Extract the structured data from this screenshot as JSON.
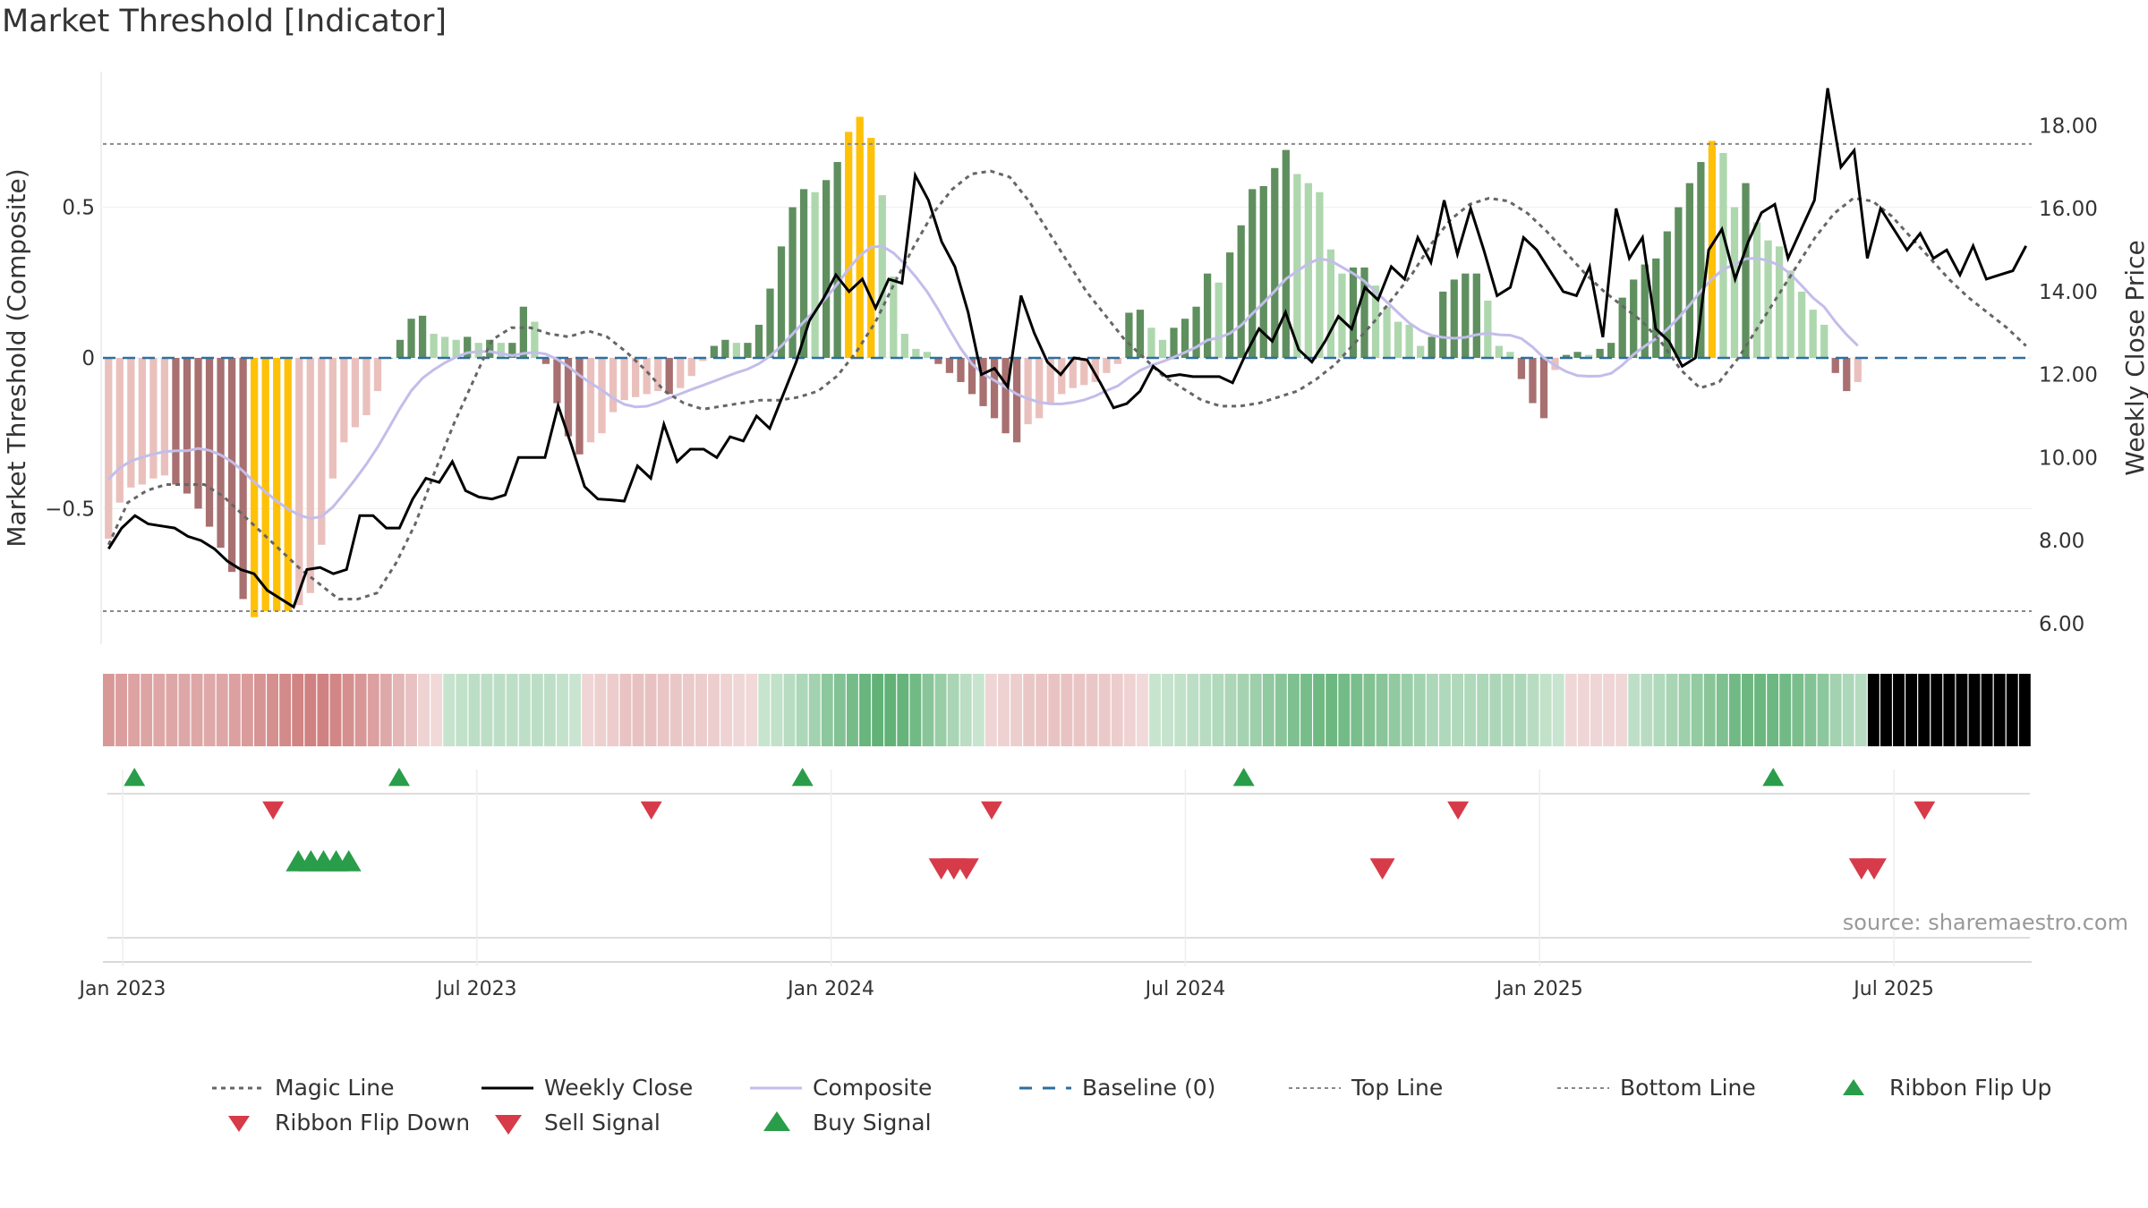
{
  "title": "Market Threshold [Indicator]",
  "source_note": "source: sharemaestro.com",
  "colors": {
    "magic_line": "#666666",
    "weekly_close": "#000000",
    "composite": "#c3bdea",
    "baseline": "#2f6f9f",
    "threshold": "#888888",
    "extreme": "#ffc107",
    "pos_strong": "#5f8f5f",
    "pos_weak": "#aed7ae",
    "neg_strong": "#a87070",
    "neg_weak": "#eac0bd",
    "buy": "#2a9d4a",
    "sell": "#d73a49"
  },
  "chart_data": {
    "type": "bar",
    "title": "Market Threshold [Indicator]",
    "ylabel_left": "Market Threshold (Composite)",
    "ylabel_right": "Weekly Close Price",
    "ylim_left": [
      -0.95,
      0.95
    ],
    "ylim_right": [
      5.5,
      19.3
    ],
    "left_ticks": [
      -0.5,
      0,
      0.5
    ],
    "left_tick_labels": [
      "−0.5",
      "0",
      "0.5"
    ],
    "right_ticks": [
      6,
      8,
      10,
      12,
      14,
      16,
      18
    ],
    "right_tick_labels": [
      "6.00",
      "8.00",
      "10.00",
      "12.00",
      "14.00",
      "16.00",
      "18.00"
    ],
    "x_ticks": [
      2,
      38,
      74,
      110,
      146,
      182
    ],
    "x_tick_labels": [
      "Jan 2023",
      "Jul 2023",
      "Jan 2024",
      "Jul 2024",
      "Jan 2025",
      "Jul 2025"
    ],
    "top_line": 0.71,
    "bottom_line": -0.84,
    "baseline": 0,
    "composite": [
      -0.6,
      -0.48,
      -0.43,
      -0.42,
      -0.4,
      -0.39,
      -0.42,
      -0.45,
      -0.5,
      -0.56,
      -0.63,
      -0.71,
      -0.8,
      -0.86,
      -0.84,
      -0.84,
      -0.84,
      -0.82,
      -0.78,
      -0.62,
      -0.4,
      -0.28,
      -0.23,
      -0.19,
      -0.11,
      0,
      0.06,
      0.13,
      0.14,
      0.08,
      0.07,
      0.06,
      0.07,
      0.05,
      0.06,
      0.05,
      0.05,
      0.17,
      0.12,
      -0.02,
      -0.15,
      -0.26,
      -0.32,
      -0.28,
      -0.25,
      -0.18,
      -0.14,
      -0.13,
      -0.12,
      -0.11,
      -0.12,
      -0.1,
      -0.06,
      -0.01,
      0.04,
      0.06,
      0.05,
      0.05,
      0.11,
      0.23,
      0.37,
      0.5,
      0.56,
      0.55,
      0.59,
      0.65,
      0.75,
      0.8,
      0.73,
      0.54,
      0.27,
      0.08,
      0.03,
      0.02,
      -0.02,
      -0.05,
      -0.08,
      -0.12,
      -0.16,
      -0.2,
      -0.25,
      -0.28,
      -0.22,
      -0.2,
      -0.15,
      -0.12,
      -0.1,
      -0.09,
      -0.08,
      -0.05,
      -0.02,
      0.15,
      0.16,
      0.1,
      0.06,
      0.1,
      0.13,
      0.17,
      0.28,
      0.25,
      0.35,
      0.44,
      0.56,
      0.57,
      0.63,
      0.69,
      0.61,
      0.58,
      0.55,
      0.36,
      0.28,
      0.3,
      0.3,
      0.24,
      0.17,
      0.12,
      0.11,
      0.04,
      0.07,
      0.22,
      0.26,
      0.28,
      0.28,
      0.19,
      0.04,
      0.02,
      -0.07,
      -0.15,
      -0.2,
      -0.04,
      0.01,
      0.02,
      0.01,
      0.03,
      0.05,
      0.2,
      0.26,
      0.31,
      0.33,
      0.42,
      0.5,
      0.58,
      0.65,
      0.72,
      0.68,
      0.5,
      0.58,
      0.45,
      0.39,
      0.37,
      0.29,
      0.22,
      0.16,
      0.11,
      -0.05,
      -0.11,
      -0.08
    ],
    "weekly_close": [
      7.8,
      8.3,
      8.6,
      8.4,
      8.35,
      8.3,
      8.1,
      8.0,
      7.8,
      7.5,
      7.3,
      7.2,
      6.8,
      6.6,
      6.4,
      7.3,
      7.35,
      7.2,
      7.3,
      8.6,
      8.6,
      8.3,
      8.3,
      9.0,
      9.5,
      9.4,
      9.9,
      9.2,
      9.05,
      9.0,
      9.1,
      10.0,
      10.0,
      10.0,
      11.25,
      10.3,
      9.3,
      9.0,
      8.98,
      8.95,
      9.8,
      9.5,
      10.8,
      9.9,
      10.2,
      10.2,
      10.0,
      10.5,
      10.4,
      11.0,
      10.7,
      11.5,
      12.3,
      13.3,
      13.8,
      14.4,
      14.0,
      14.3,
      13.6,
      14.3,
      14.2,
      16.8,
      16.2,
      15.2,
      14.6,
      13.5,
      12.0,
      12.15,
      11.7,
      13.9,
      13.0,
      12.3,
      12.0,
      12.4,
      12.35,
      11.8,
      11.2,
      11.3,
      11.6,
      12.2,
      11.95,
      12.0,
      11.95,
      11.95,
      11.95,
      11.8,
      12.5,
      13.1,
      12.8,
      13.5,
      12.6,
      12.3,
      12.8,
      13.4,
      13.1,
      14.1,
      13.8,
      14.6,
      14.3,
      15.3,
      14.7,
      16.2,
      14.9,
      16.0,
      15.0,
      13.9,
      14.1,
      15.3,
      15.0,
      14.5,
      14.0,
      13.9,
      14.6,
      12.9,
      16.0,
      14.8,
      15.3,
      13.1,
      12.8,
      12.2,
      12.4,
      15.0,
      15.5,
      14.3,
      15.2,
      15.9,
      16.1,
      14.8,
      15.5,
      16.2,
      18.9,
      17.0,
      17.4,
      14.8,
      16.0,
      15.5,
      15.0,
      15.4,
      14.8,
      15.0,
      14.4,
      15.1,
      14.3,
      14.4,
      14.5,
      15.1
    ],
    "magic_line": [
      -0.62,
      -0.48,
      -0.44,
      -0.42,
      -0.42,
      -0.42,
      -0.46,
      -0.52,
      -0.58,
      -0.64,
      -0.7,
      -0.75,
      -0.8,
      -0.8,
      -0.78,
      -0.68,
      -0.55,
      -0.38,
      -0.22,
      -0.08,
      0.06,
      0.1,
      0.1,
      0.08,
      0.07,
      0.09,
      0.07,
      0.02,
      -0.04,
      -0.11,
      -0.15,
      -0.17,
      -0.16,
      -0.15,
      -0.14,
      -0.14,
      -0.13,
      -0.11,
      -0.06,
      0.02,
      0.12,
      0.25,
      0.37,
      0.48,
      0.56,
      0.61,
      0.62,
      0.6,
      0.52,
      0.42,
      0.32,
      0.22,
      0.14,
      0.06,
      0.0,
      -0.06,
      -0.1,
      -0.14,
      -0.16,
      -0.16,
      -0.15,
      -0.13,
      -0.11,
      -0.07,
      -0.02,
      0.05,
      0.12,
      0.2,
      0.28,
      0.38,
      0.46,
      0.51,
      0.53,
      0.52,
      0.48,
      0.42,
      0.35,
      0.28,
      0.22,
      0.17,
      0.12,
      0.05,
      -0.04,
      -0.1,
      -0.08,
      0.0,
      0.1,
      0.2,
      0.3,
      0.4,
      0.48,
      0.53,
      0.52,
      0.47,
      0.4,
      0.33,
      0.26,
      0.2,
      0.15,
      0.1,
      0.04
    ],
    "x_count": 172,
    "ribbon_count": 153,
    "ribbon_flip_up": [
      2,
      23,
      55,
      90,
      132
    ],
    "ribbon_flip_down": [
      13,
      43,
      70,
      107,
      144
    ],
    "buy_signal": [
      15,
      16,
      17,
      18,
      19
    ],
    "sell_signal": [
      66,
      67,
      68,
      101,
      139,
      140
    ],
    "legend": [
      "Magic Line",
      "Weekly Close",
      "Composite",
      "Baseline (0)",
      "Top Line",
      "Bottom Line",
      "Ribbon Flip Up",
      "Ribbon Flip Down",
      "Sell Signal",
      "Buy Signal"
    ]
  }
}
